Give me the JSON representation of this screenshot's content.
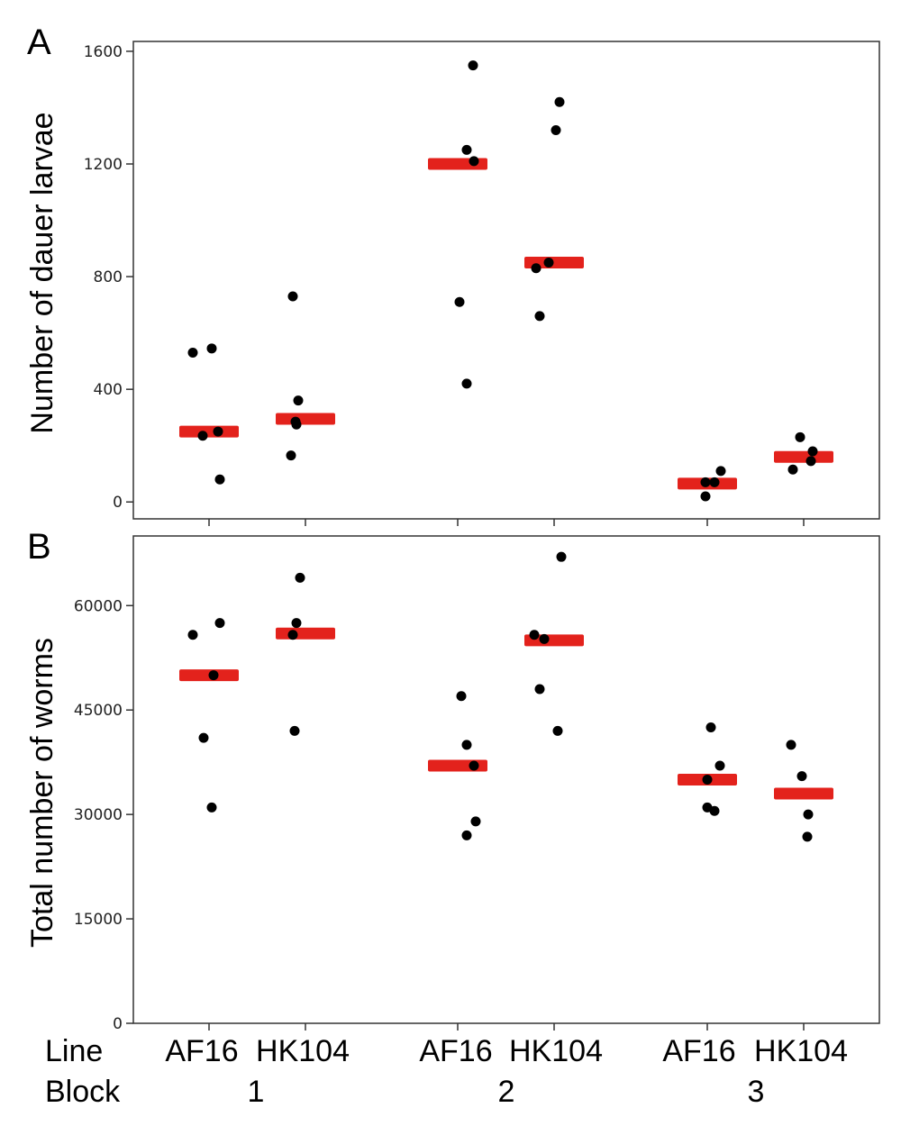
{
  "colors": {
    "mean_bar": "#e3221c",
    "point": "#000000",
    "frame": "#333333"
  },
  "bottom_labels": {
    "line_label": "Line",
    "block_label": "Block",
    "groups": [
      {
        "block": "1",
        "lines": [
          "AF16",
          "HK104"
        ]
      },
      {
        "block": "2",
        "lines": [
          "AF16",
          "HK104"
        ]
      },
      {
        "block": "3",
        "lines": [
          "AF16",
          "HK104"
        ]
      }
    ]
  },
  "chart_data": [
    {
      "panel": "A",
      "type": "scatter",
      "title": "",
      "ylabel": "Number of dauer larvae",
      "xlabel": "",
      "ylim": [
        -60,
        1635
      ],
      "yticks": [
        0,
        400,
        800,
        1200,
        1600
      ],
      "ytick_labels": [
        "0",
        "400",
        "800",
        "1200",
        "1600"
      ],
      "categories": [
        "AF16 1",
        "HK104 1",
        "AF16 2",
        "HK104 2",
        "AF16 3",
        "HK104 3"
      ],
      "points": [
        [
          530,
          545,
          250,
          235,
          80
        ],
        [
          730,
          360,
          285,
          275,
          165
        ],
        [
          1550,
          1250,
          1210,
          710,
          420
        ],
        [
          1420,
          1320,
          850,
          830,
          660
        ],
        [
          110,
          70,
          70,
          20
        ],
        [
          230,
          180,
          145,
          115
        ]
      ],
      "means": [
        250,
        295,
        1200,
        850,
        65,
        160
      ]
    },
    {
      "panel": "B",
      "type": "scatter",
      "title": "",
      "ylabel": "Total number of worms",
      "xlabel": "",
      "ylim": [
        0,
        70000
      ],
      "yticks": [
        0,
        15000,
        30000,
        45000,
        60000
      ],
      "ytick_labels": [
        "0",
        "15000",
        "30000",
        "45000",
        "60000"
      ],
      "categories": [
        "AF16 1",
        "HK104 1",
        "AF16 2",
        "HK104 2",
        "AF16 3",
        "HK104 3"
      ],
      "points": [
        [
          57500,
          55800,
          50000,
          41000,
          31000
        ],
        [
          64000,
          57500,
          55800,
          42000
        ],
        [
          47000,
          40000,
          37000,
          29000,
          27000
        ],
        [
          67000,
          55800,
          55200,
          48000,
          42000
        ],
        [
          42500,
          37000,
          35000,
          31000,
          30500
        ],
        [
          40000,
          35500,
          30000,
          26800
        ]
      ],
      "means": [
        50000,
        56000,
        37000,
        55000,
        35000,
        33000
      ]
    }
  ]
}
